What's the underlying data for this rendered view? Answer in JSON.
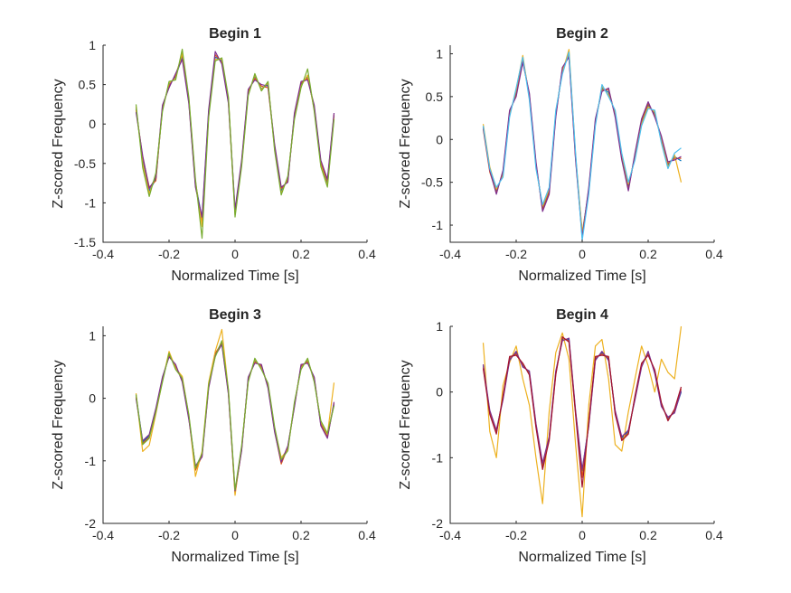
{
  "chart_data": [
    {
      "type": "line",
      "title": "Begin 1",
      "xlabel": "Normalized Time [s]",
      "ylabel": "Z-scored Frequency",
      "xlim": [
        -0.4,
        0.4
      ],
      "ylim": [
        -1.5,
        1
      ],
      "xticks": [
        -0.4,
        -0.2,
        0,
        0.2,
        0.4
      ],
      "xticklabels": [
        "-0.4",
        "-0.2",
        "0",
        "0.2",
        "0.4"
      ],
      "yticks": [
        -1.5,
        -1,
        -0.5,
        0,
        0.5,
        1
      ],
      "yticklabels": [
        "-1.5",
        "-1",
        "-0.5",
        "0",
        "0.5",
        "1"
      ],
      "grid": false,
      "legend": "none",
      "series_colors": [
        "#0072BD",
        "#D95319",
        "#EDB120",
        "#7E2F8E",
        "#77AC30"
      ],
      "x": [
        -0.3,
        -0.28,
        -0.26,
        -0.24,
        -0.22,
        -0.2,
        -0.18,
        -0.16,
        -0.14,
        -0.12,
        -0.1,
        -0.08,
        -0.06,
        -0.04,
        -0.02,
        0,
        0.02,
        0.04,
        0.06,
        0.08,
        0.1,
        0.12,
        0.14,
        0.16,
        0.18,
        0.2,
        0.22,
        0.24,
        0.26,
        0.28,
        0.3
      ],
      "series": [
        {
          "values": [
            0.2,
            -0.45,
            -0.85,
            -0.7,
            0.2,
            0.5,
            0.6,
            0.85,
            0.3,
            -0.75,
            -1.2,
            0.15,
            0.85,
            0.8,
            0.3,
            -1.1,
            -0.5,
            0.4,
            0.6,
            0.45,
            0.5,
            -0.3,
            -0.85,
            -0.7,
            0.1,
            0.5,
            0.6,
            0.2,
            -0.5,
            -0.75,
            0.1
          ]
        },
        {
          "values": [
            0.18,
            -0.42,
            -0.8,
            -0.72,
            0.22,
            0.48,
            0.62,
            0.88,
            0.28,
            -0.78,
            -1.25,
            0.1,
            0.88,
            0.78,
            0.28,
            -1.15,
            -0.48,
            0.42,
            0.58,
            0.48,
            0.46,
            -0.28,
            -0.82,
            -0.72,
            0.12,
            0.52,
            0.58,
            0.22,
            -0.48,
            -0.72,
            0.12
          ]
        },
        {
          "values": [
            0.22,
            -0.5,
            -0.88,
            -0.65,
            0.18,
            0.52,
            0.58,
            0.9,
            0.32,
            -0.72,
            -1.3,
            0.12,
            0.82,
            0.82,
            0.32,
            -1.12,
            -0.52,
            0.38,
            0.62,
            0.44,
            0.52,
            -0.32,
            -0.88,
            -0.68,
            0.08,
            0.48,
            0.62,
            0.18,
            -0.52,
            -0.78,
            0.08
          ]
        },
        {
          "values": [
            0.15,
            -0.4,
            -0.82,
            -0.68,
            0.24,
            0.46,
            0.64,
            0.82,
            0.26,
            -0.8,
            -1.18,
            0.18,
            0.92,
            0.76,
            0.26,
            -1.08,
            -0.46,
            0.44,
            0.56,
            0.5,
            0.48,
            -0.26,
            -0.8,
            -0.74,
            0.14,
            0.54,
            0.56,
            0.24,
            -0.46,
            -0.7,
            0.14
          ]
        },
        {
          "values": [
            0.25,
            -0.55,
            -0.92,
            -0.62,
            0.16,
            0.54,
            0.56,
            0.95,
            0.34,
            -0.7,
            -1.45,
            0.08,
            0.8,
            0.84,
            0.34,
            -1.18,
            -0.54,
            0.36,
            0.64,
            0.42,
            0.54,
            -0.34,
            -0.9,
            -0.66,
            0.06,
            0.46,
            0.7,
            0.16,
            -0.54,
            -0.8,
            0.06
          ]
        }
      ]
    },
    {
      "type": "line",
      "title": "Begin 2",
      "xlabel": "Normalized Time [s]",
      "ylabel": "Z-scored Frequency",
      "xlim": [
        -0.4,
        0.4
      ],
      "ylim": [
        -1.2,
        1.1
      ],
      "xticks": [
        -0.4,
        -0.2,
        0,
        0.2,
        0.4
      ],
      "xticklabels": [
        "-0.4",
        "-0.2",
        "0",
        "0.2",
        "0.4"
      ],
      "yticks": [
        -1,
        -0.5,
        0,
        0.5,
        1
      ],
      "yticklabels": [
        "-1",
        "-0.5",
        "0",
        "0.5",
        "1"
      ],
      "grid": false,
      "legend": "none",
      "series_colors": [
        "#0072BD",
        "#D95319",
        "#EDB120",
        "#7E2F8E",
        "#4DBEEE"
      ],
      "x": [
        -0.3,
        -0.28,
        -0.26,
        -0.24,
        -0.22,
        -0.2,
        -0.18,
        -0.16,
        -0.14,
        -0.12,
        -0.1,
        -0.08,
        -0.06,
        -0.04,
        -0.02,
        0,
        0.02,
        0.04,
        0.06,
        0.08,
        0.1,
        0.12,
        0.14,
        0.16,
        0.18,
        0.2,
        0.22,
        0.24,
        0.26,
        0.28,
        0.3
      ],
      "series": [
        {
          "values": [
            0.15,
            -0.35,
            -0.6,
            -0.4,
            0.3,
            0.55,
            0.95,
            0.5,
            -0.3,
            -0.8,
            -0.6,
            0.3,
            0.8,
            1.0,
            -0.2,
            -1.1,
            -0.6,
            0.2,
            0.6,
            0.55,
            0.3,
            -0.2,
            -0.55,
            -0.2,
            0.2,
            0.4,
            0.3,
            0.0,
            -0.3,
            -0.2,
            -0.25
          ]
        },
        {
          "values": [
            0.12,
            -0.38,
            -0.62,
            -0.38,
            0.32,
            0.52,
            0.92,
            0.52,
            -0.28,
            -0.82,
            -0.62,
            0.28,
            0.82,
            0.98,
            -0.22,
            -1.12,
            -0.58,
            0.22,
            0.58,
            0.58,
            0.28,
            -0.22,
            -0.58,
            -0.18,
            0.22,
            0.42,
            0.28,
            0.02,
            -0.28,
            -0.22,
            -0.22
          ]
        },
        {
          "values": [
            0.18,
            -0.32,
            -0.58,
            -0.42,
            0.28,
            0.58,
            0.98,
            0.48,
            -0.32,
            -0.78,
            -0.58,
            0.32,
            0.78,
            1.05,
            -0.18,
            -1.08,
            -0.62,
            0.18,
            0.62,
            0.52,
            0.32,
            -0.18,
            -0.52,
            -0.22,
            0.18,
            0.38,
            0.32,
            -0.02,
            -0.32,
            -0.18,
            -0.5
          ]
        },
        {
          "values": [
            0.14,
            -0.36,
            -0.64,
            -0.36,
            0.34,
            0.5,
            0.9,
            0.54,
            -0.26,
            -0.84,
            -0.64,
            0.26,
            0.84,
            0.96,
            -0.24,
            -1.14,
            -0.56,
            0.24,
            0.56,
            0.6,
            0.26,
            -0.24,
            -0.6,
            -0.16,
            0.24,
            0.44,
            0.26,
            0.04,
            -0.26,
            -0.24,
            -0.2
          ]
        },
        {
          "values": [
            0.16,
            -0.34,
            -0.56,
            -0.44,
            0.26,
            0.6,
            0.96,
            0.46,
            -0.34,
            -0.76,
            -0.56,
            0.34,
            0.76,
            1.02,
            -0.16,
            -1.18,
            -0.64,
            0.16,
            0.64,
            0.5,
            0.34,
            -0.16,
            -0.5,
            -0.24,
            0.16,
            0.36,
            0.34,
            -0.04,
            -0.34,
            -0.16,
            -0.1
          ]
        }
      ]
    },
    {
      "type": "line",
      "title": "Begin 3",
      "xlabel": "Normalized Time [s]",
      "ylabel": "Z-scored Frequency",
      "xlim": [
        -0.4,
        0.4
      ],
      "ylim": [
        -2,
        1.15
      ],
      "xticks": [
        -0.4,
        -0.2,
        0,
        0.2,
        0.4
      ],
      "xticklabels": [
        "-0.4",
        "-0.2",
        "0",
        "0.2",
        "0.4"
      ],
      "yticks": [
        -2,
        -1,
        0,
        1
      ],
      "yticklabels": [
        "-2",
        "-1",
        "0",
        "1"
      ],
      "grid": false,
      "legend": "none",
      "series_colors": [
        "#0072BD",
        "#D95319",
        "#EDB120",
        "#7E2F8E",
        "#77AC30"
      ],
      "x": [
        -0.3,
        -0.28,
        -0.26,
        -0.24,
        -0.22,
        -0.2,
        -0.18,
        -0.16,
        -0.14,
        -0.12,
        -0.1,
        -0.08,
        -0.06,
        -0.04,
        -0.02,
        0,
        0.02,
        0.04,
        0.06,
        0.08,
        0.1,
        0.12,
        0.14,
        0.16,
        0.18,
        0.2,
        0.22,
        0.24,
        0.26,
        0.28,
        0.3
      ],
      "series": [
        {
          "values": [
            0.05,
            -0.7,
            -0.6,
            -0.2,
            0.3,
            0.7,
            0.5,
            0.3,
            -0.3,
            -1.1,
            -0.9,
            0.2,
            0.7,
            0.9,
            0.1,
            -1.5,
            -0.8,
            0.3,
            0.6,
            0.5,
            0.2,
            -0.5,
            -1.0,
            -0.8,
            -0.1,
            0.5,
            0.6,
            0.3,
            -0.4,
            -0.6,
            -0.1
          ]
        },
        {
          "values": [
            0.02,
            -0.72,
            -0.62,
            -0.18,
            0.32,
            0.68,
            0.52,
            0.28,
            -0.32,
            -1.15,
            -0.92,
            0.18,
            0.72,
            0.88,
            0.08,
            -1.52,
            -0.82,
            0.32,
            0.58,
            0.52,
            0.18,
            -0.52,
            -1.05,
            -0.78,
            -0.12,
            0.52,
            0.58,
            0.32,
            -0.42,
            -0.62,
            -0.08
          ]
        },
        {
          "values": [
            0.08,
            -0.85,
            -0.75,
            -0.25,
            0.28,
            0.75,
            0.48,
            0.35,
            -0.28,
            -1.25,
            -0.85,
            0.25,
            0.75,
            1.1,
            0.12,
            -1.55,
            -0.78,
            0.28,
            0.62,
            0.48,
            0.22,
            -0.48,
            -0.95,
            -0.82,
            -0.08,
            0.48,
            0.62,
            0.28,
            -0.38,
            -0.58,
            0.25
          ]
        },
        {
          "values": [
            0.0,
            -0.68,
            -0.58,
            -0.16,
            0.34,
            0.66,
            0.54,
            0.26,
            -0.34,
            -1.08,
            -0.94,
            0.16,
            0.68,
            0.86,
            0.06,
            -1.48,
            -0.84,
            0.34,
            0.56,
            0.54,
            0.16,
            -0.54,
            -1.02,
            -0.76,
            -0.14,
            0.54,
            0.56,
            0.34,
            -0.44,
            -0.64,
            -0.06
          ]
        },
        {
          "values": [
            0.06,
            -0.74,
            -0.64,
            -0.22,
            0.26,
            0.72,
            0.46,
            0.32,
            -0.26,
            -1.12,
            -0.88,
            0.22,
            0.66,
            0.92,
            0.14,
            -1.46,
            -0.76,
            0.26,
            0.64,
            0.46,
            0.24,
            -0.46,
            -0.98,
            -0.84,
            -0.06,
            0.46,
            0.64,
            0.26,
            -0.36,
            -0.56,
            -0.12
          ]
        }
      ]
    },
    {
      "type": "line",
      "title": "Begin 4",
      "xlabel": "Normalized Time [s]",
      "ylabel": "Z-scored Frequency",
      "xlim": [
        -0.4,
        0.4
      ],
      "ylim": [
        -2,
        1
      ],
      "xticks": [
        -0.4,
        -0.2,
        0,
        0.2,
        0.4
      ],
      "xticklabels": [
        "-0.4",
        "-0.2",
        "0",
        "0.2",
        "0.4"
      ],
      "yticks": [
        -2,
        -1,
        0,
        1
      ],
      "yticklabels": [
        "-2",
        "-1",
        "0",
        "1"
      ],
      "grid": false,
      "legend": "none",
      "series_colors": [
        "#0072BD",
        "#D95319",
        "#EDB120",
        "#7E2F8E",
        "#A2142F"
      ],
      "x": [
        -0.3,
        -0.28,
        -0.26,
        -0.24,
        -0.22,
        -0.2,
        -0.18,
        -0.16,
        -0.14,
        -0.12,
        -0.1,
        -0.08,
        -0.06,
        -0.04,
        -0.02,
        0,
        0.02,
        0.04,
        0.06,
        0.08,
        0.1,
        0.12,
        0.14,
        0.16,
        0.18,
        0.2,
        0.22,
        0.24,
        0.26,
        0.28,
        0.3
      ],
      "series": [
        {
          "values": [
            0.4,
            -0.3,
            -0.6,
            -0.1,
            0.5,
            0.6,
            0.4,
            0.3,
            -0.5,
            -1.1,
            -0.7,
            0.3,
            0.8,
            0.8,
            -0.3,
            -1.2,
            -0.5,
            0.5,
            0.6,
            0.5,
            -0.3,
            -0.7,
            -0.6,
            -0.1,
            0.4,
            0.6,
            0.3,
            -0.2,
            -0.4,
            -0.3,
            0.0
          ]
        },
        {
          "values": [
            0.38,
            -0.32,
            -0.62,
            -0.08,
            0.52,
            0.58,
            0.42,
            0.28,
            -0.52,
            -1.15,
            -0.72,
            0.28,
            0.82,
            0.78,
            -0.32,
            -1.3,
            -0.48,
            0.52,
            0.58,
            0.52,
            -0.32,
            -0.72,
            -0.62,
            -0.08,
            0.42,
            0.58,
            0.32,
            -0.18,
            -0.42,
            -0.28,
            0.05
          ]
        },
        {
          "values": [
            0.75,
            -0.6,
            -1.0,
            0.1,
            0.45,
            0.7,
            0.2,
            -0.2,
            -1.0,
            -1.7,
            -0.3,
            0.6,
            0.9,
            0.5,
            -0.8,
            -1.9,
            -0.2,
            0.7,
            0.8,
            0.2,
            -0.8,
            -0.9,
            -0.3,
            0.2,
            0.7,
            0.4,
            0.0,
            0.5,
            0.3,
            0.2,
            1.0
          ]
        },
        {
          "values": [
            0.42,
            -0.28,
            -0.58,
            -0.12,
            0.48,
            0.62,
            0.38,
            0.32,
            -0.48,
            -1.08,
            -0.68,
            0.32,
            0.78,
            0.82,
            -0.28,
            -1.18,
            -0.52,
            0.48,
            0.62,
            0.48,
            -0.28,
            -0.68,
            -0.58,
            -0.12,
            0.38,
            0.62,
            0.28,
            -0.22,
            -0.38,
            -0.32,
            0.02
          ]
        },
        {
          "values": [
            0.36,
            -0.34,
            -0.64,
            -0.06,
            0.54,
            0.56,
            0.44,
            0.26,
            -0.54,
            -1.18,
            -0.74,
            0.26,
            0.84,
            0.76,
            -0.34,
            -1.45,
            -0.46,
            0.54,
            0.56,
            0.54,
            -0.34,
            -0.74,
            -0.64,
            -0.06,
            0.44,
            0.56,
            0.34,
            -0.16,
            -0.44,
            -0.26,
            0.08
          ]
        }
      ]
    }
  ]
}
